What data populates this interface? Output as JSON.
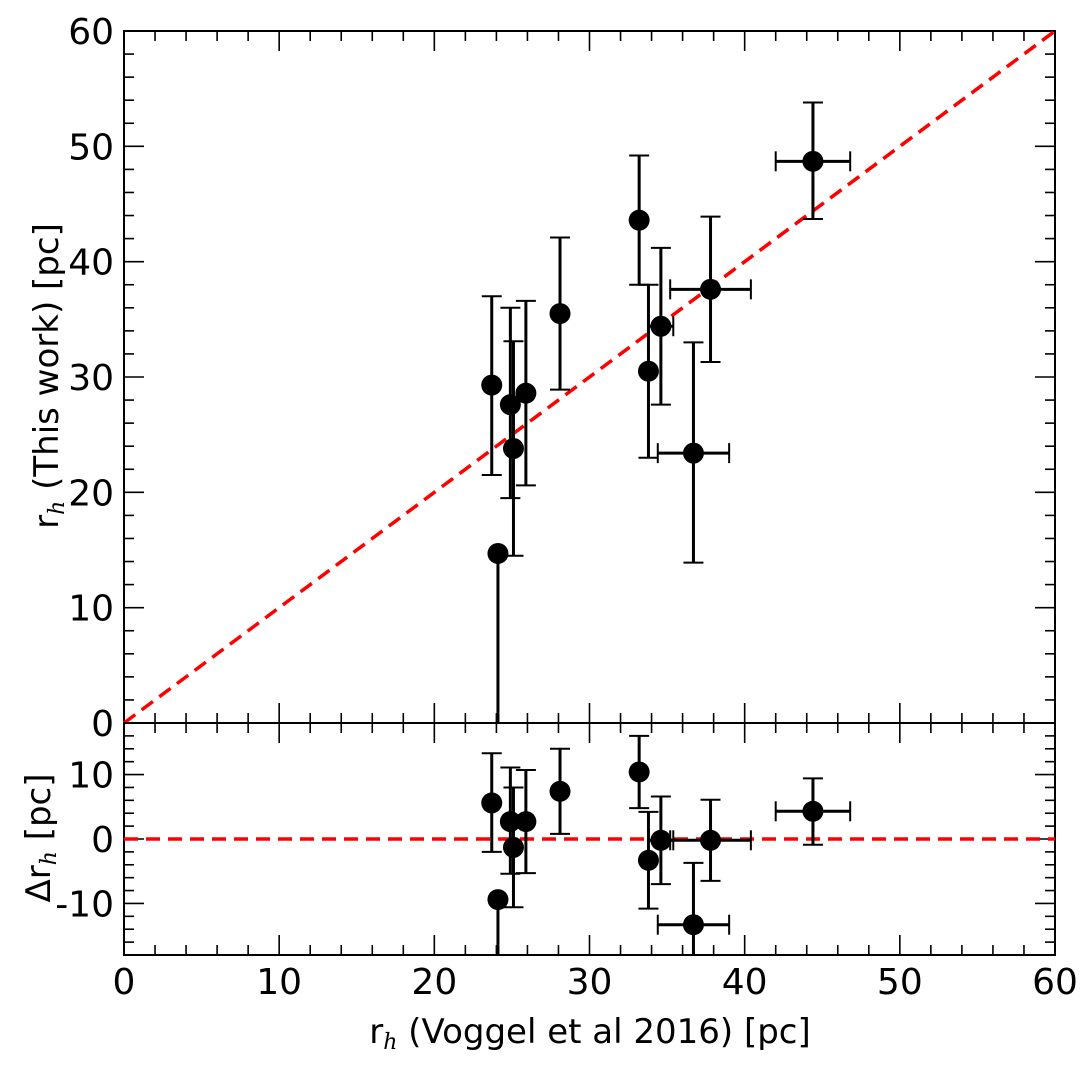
{
  "chart_data": {
    "type": "scatter",
    "top_panel": {
      "ylabel_prefix": "r",
      "ylabel_sub": "h",
      "ylabel_rest": " (This work) [pc]",
      "xlim": [
        0,
        60
      ],
      "ylim": [
        0,
        60
      ],
      "yticks": [
        0,
        10,
        20,
        30,
        40,
        50,
        60
      ],
      "ytick_labels": [
        "0",
        "10",
        "20",
        "30",
        "40",
        "50",
        "60"
      ],
      "reference_line": {
        "label": "1:1",
        "color": "#ff0000",
        "x": [
          0,
          60
        ],
        "y": [
          0,
          60
        ]
      }
    },
    "bottom_panel": {
      "ylabel_prefix": "Δr",
      "ylabel_sub": "h",
      "ylabel_rest": " [pc]",
      "ylim": [
        -18,
        18
      ],
      "yticks": [
        -10,
        0,
        10
      ],
      "ytick_labels": [
        "-10",
        "0",
        "10"
      ],
      "reference_line": {
        "label": "zero",
        "color": "#ff0000",
        "y": 0
      }
    },
    "xlabel_prefix": "r",
    "xlabel_sub": "h",
    "xlabel_rest": " (Voggel et al 2016) [pc]",
    "xticks": [
      0,
      10,
      20,
      30,
      40,
      50,
      60
    ],
    "xtick_labels": [
      "0",
      "10",
      "20",
      "30",
      "40",
      "50",
      "60"
    ],
    "marker_color": "#000000",
    "points": [
      {
        "x": 23.7,
        "y": 29.3,
        "ylo": 21.5,
        "yhi": 37.0,
        "xlo": 23.7,
        "xhi": 23.7,
        "dy": 5.6,
        "dylo": -2.0,
        "dyhi": 13.3
      },
      {
        "x": 24.1,
        "y": 14.7,
        "ylo": 0.0,
        "yhi": 14.7,
        "xlo": 24.1,
        "xhi": 24.1,
        "dy": -9.4,
        "dylo": -18.0,
        "dyhi": -9.4
      },
      {
        "x": 24.9,
        "y": 27.6,
        "ylo": 19.5,
        "yhi": 36.0,
        "xlo": 24.9,
        "xhi": 24.9,
        "dy": 2.7,
        "dylo": -5.4,
        "dyhi": 11.1
      },
      {
        "x": 25.1,
        "y": 23.8,
        "ylo": 14.5,
        "yhi": 33.1,
        "xlo": 25.1,
        "xhi": 25.1,
        "dy": -1.3,
        "dylo": -10.6,
        "dyhi": 8.0
      },
      {
        "x": 25.9,
        "y": 28.6,
        "ylo": 20.6,
        "yhi": 36.6,
        "xlo": 25.9,
        "xhi": 25.9,
        "dy": 2.7,
        "dylo": -5.3,
        "dyhi": 10.7
      },
      {
        "x": 28.1,
        "y": 35.5,
        "ylo": 28.9,
        "yhi": 42.1,
        "xlo": 28.1,
        "xhi": 28.1,
        "dy": 7.4,
        "dylo": 0.8,
        "dyhi": 14.0
      },
      {
        "x": 33.2,
        "y": 43.6,
        "ylo": 38.0,
        "yhi": 49.2,
        "xlo": 33.2,
        "xhi": 33.2,
        "dy": 10.4,
        "dylo": 4.8,
        "dyhi": 16.0
      },
      {
        "x": 33.8,
        "y": 30.5,
        "ylo": 23.0,
        "yhi": 38.0,
        "xlo": 33.8,
        "xhi": 33.8,
        "dy": -3.3,
        "dylo": -10.8,
        "dyhi": 4.2
      },
      {
        "x": 34.6,
        "y": 34.4,
        "ylo": 27.6,
        "yhi": 41.2,
        "xlo": 33.8,
        "xhi": 35.4,
        "dy": -0.2,
        "dylo": -7.0,
        "dyhi": 6.6
      },
      {
        "x": 36.7,
        "y": 23.4,
        "ylo": 13.9,
        "yhi": 33.0,
        "xlo": 34.4,
        "xhi": 39.0,
        "dy": -13.3,
        "dylo": -18.0,
        "dyhi": -3.7
      },
      {
        "x": 37.8,
        "y": 37.6,
        "ylo": 31.3,
        "yhi": 43.9,
        "xlo": 35.2,
        "xhi": 40.4,
        "dy": -0.2,
        "dylo": -6.5,
        "dyhi": 6.1
      },
      {
        "x": 44.4,
        "y": 48.7,
        "ylo": 43.7,
        "yhi": 53.8,
        "xlo": 42.0,
        "xhi": 46.8,
        "dy": 4.3,
        "dylo": -0.9,
        "dyhi": 9.4
      }
    ]
  }
}
